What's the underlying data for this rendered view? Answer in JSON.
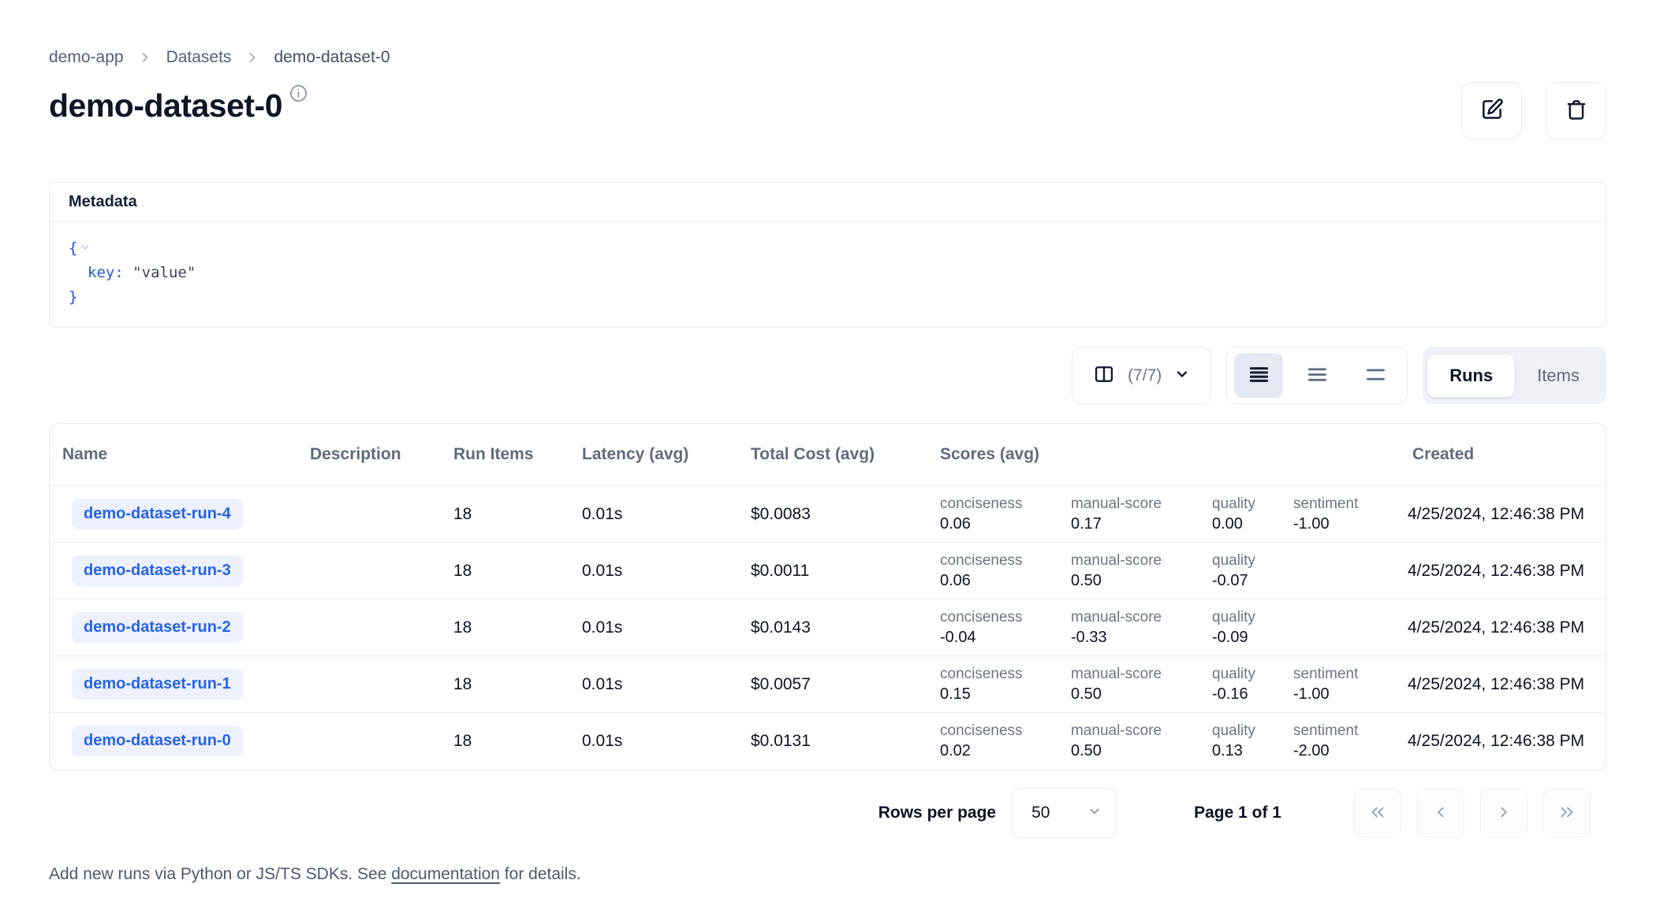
{
  "breadcrumb": {
    "items": [
      "demo-app",
      "Datasets",
      "demo-dataset-0"
    ]
  },
  "header": {
    "title": "demo-dataset-0"
  },
  "metadata": {
    "title": "Metadata",
    "json": {
      "open_brace": "{",
      "key": "key",
      "colon": ":",
      "value": "\"value\"",
      "close_brace": "}"
    }
  },
  "toolbar": {
    "columns_count": "(7/7)",
    "tabs": [
      {
        "label": "Runs"
      },
      {
        "label": "Items"
      }
    ]
  },
  "table": {
    "columns": [
      "Name",
      "Description",
      "Run Items",
      "Latency (avg)",
      "Total Cost (avg)",
      "Scores (avg)",
      "Created"
    ],
    "rows": [
      {
        "name": "demo-dataset-run-4",
        "description": "",
        "run_items": "18",
        "latency": "0.01s",
        "total_cost": "$0.0083",
        "scores": [
          {
            "label": "conciseness",
            "value": "0.06"
          },
          {
            "label": "manual-score",
            "value": "0.17"
          },
          {
            "label": "quality",
            "value": "0.00"
          },
          {
            "label": "sentiment",
            "value": "-1.00"
          }
        ],
        "created": "4/25/2024, 12:46:38 PM"
      },
      {
        "name": "demo-dataset-run-3",
        "description": "",
        "run_items": "18",
        "latency": "0.01s",
        "total_cost": "$0.0011",
        "scores": [
          {
            "label": "conciseness",
            "value": "0.06"
          },
          {
            "label": "manual-score",
            "value": "0.50"
          },
          {
            "label": "quality",
            "value": "-0.07"
          }
        ],
        "created": "4/25/2024, 12:46:38 PM"
      },
      {
        "name": "demo-dataset-run-2",
        "description": "",
        "run_items": "18",
        "latency": "0.01s",
        "total_cost": "$0.0143",
        "scores": [
          {
            "label": "conciseness",
            "value": "-0.04"
          },
          {
            "label": "manual-score",
            "value": "-0.33"
          },
          {
            "label": "quality",
            "value": "-0.09"
          }
        ],
        "created": "4/25/2024, 12:46:38 PM"
      },
      {
        "name": "demo-dataset-run-1",
        "description": "",
        "run_items": "18",
        "latency": "0.01s",
        "total_cost": "$0.0057",
        "scores": [
          {
            "label": "conciseness",
            "value": "0.15"
          },
          {
            "label": "manual-score",
            "value": "0.50"
          },
          {
            "label": "quality",
            "value": "-0.16"
          },
          {
            "label": "sentiment",
            "value": "-1.00"
          }
        ],
        "created": "4/25/2024, 12:46:38 PM"
      },
      {
        "name": "demo-dataset-run-0",
        "description": "",
        "run_items": "18",
        "latency": "0.01s",
        "total_cost": "$0.0131",
        "scores": [
          {
            "label": "conciseness",
            "value": "0.02"
          },
          {
            "label": "manual-score",
            "value": "0.50"
          },
          {
            "label": "quality",
            "value": "0.13"
          },
          {
            "label": "sentiment",
            "value": "-2.00"
          }
        ],
        "created": "4/25/2024, 12:46:38 PM"
      }
    ]
  },
  "pagination": {
    "rows_per_page_label": "Rows per page",
    "rows_per_page_value": "50",
    "page_status": "Page 1 of 1"
  },
  "footer": {
    "prefix": "Add new runs via Python or JS/TS SDKs. See ",
    "link_text": "documentation",
    "suffix": " for details."
  },
  "colors": {
    "accent_blue": "#2563eb",
    "name_pill_bg": "#edf1fd",
    "json_blue": "#1d4ed8"
  }
}
